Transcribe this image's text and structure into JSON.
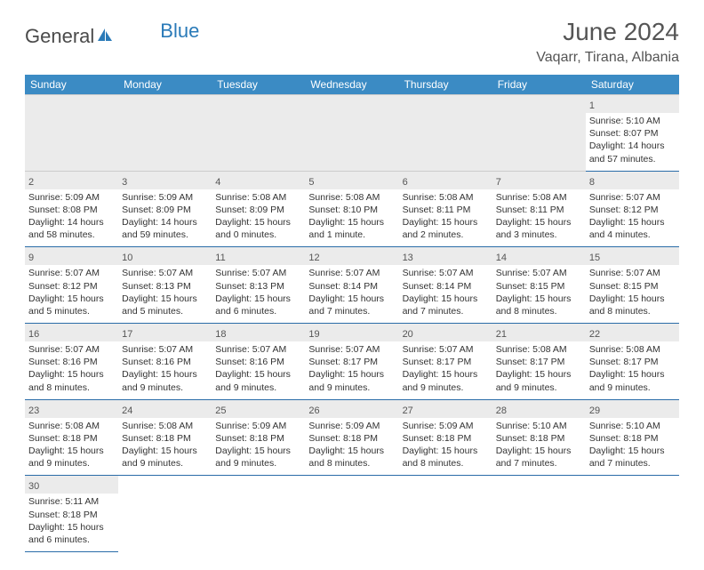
{
  "logo": {
    "part1": "General",
    "part2": "Blue"
  },
  "title": "June 2024",
  "location": "Vaqarr, Tirana, Albania",
  "colors": {
    "header_bg": "#3b8bc4",
    "header_text": "#ffffff",
    "row_border": "#2a6ca8",
    "alt_bg": "#ebebeb",
    "text": "#333333",
    "title_text": "#555555",
    "logo_gray": "#4a4a4a",
    "logo_blue": "#2a7ab8"
  },
  "weekdays": [
    "Sunday",
    "Monday",
    "Tuesday",
    "Wednesday",
    "Thursday",
    "Friday",
    "Saturday"
  ],
  "weeks": [
    [
      null,
      null,
      null,
      null,
      null,
      null,
      {
        "n": "1",
        "sr": "Sunrise: 5:10 AM",
        "ss": "Sunset: 8:07 PM",
        "d1": "Daylight: 14 hours",
        "d2": "and 57 minutes."
      }
    ],
    [
      {
        "n": "2",
        "sr": "Sunrise: 5:09 AM",
        "ss": "Sunset: 8:08 PM",
        "d1": "Daylight: 14 hours",
        "d2": "and 58 minutes."
      },
      {
        "n": "3",
        "sr": "Sunrise: 5:09 AM",
        "ss": "Sunset: 8:09 PM",
        "d1": "Daylight: 14 hours",
        "d2": "and 59 minutes."
      },
      {
        "n": "4",
        "sr": "Sunrise: 5:08 AM",
        "ss": "Sunset: 8:09 PM",
        "d1": "Daylight: 15 hours",
        "d2": "and 0 minutes."
      },
      {
        "n": "5",
        "sr": "Sunrise: 5:08 AM",
        "ss": "Sunset: 8:10 PM",
        "d1": "Daylight: 15 hours",
        "d2": "and 1 minute."
      },
      {
        "n": "6",
        "sr": "Sunrise: 5:08 AM",
        "ss": "Sunset: 8:11 PM",
        "d1": "Daylight: 15 hours",
        "d2": "and 2 minutes."
      },
      {
        "n": "7",
        "sr": "Sunrise: 5:08 AM",
        "ss": "Sunset: 8:11 PM",
        "d1": "Daylight: 15 hours",
        "d2": "and 3 minutes."
      },
      {
        "n": "8",
        "sr": "Sunrise: 5:07 AM",
        "ss": "Sunset: 8:12 PM",
        "d1": "Daylight: 15 hours",
        "d2": "and 4 minutes."
      }
    ],
    [
      {
        "n": "9",
        "sr": "Sunrise: 5:07 AM",
        "ss": "Sunset: 8:12 PM",
        "d1": "Daylight: 15 hours",
        "d2": "and 5 minutes."
      },
      {
        "n": "10",
        "sr": "Sunrise: 5:07 AM",
        "ss": "Sunset: 8:13 PM",
        "d1": "Daylight: 15 hours",
        "d2": "and 5 minutes."
      },
      {
        "n": "11",
        "sr": "Sunrise: 5:07 AM",
        "ss": "Sunset: 8:13 PM",
        "d1": "Daylight: 15 hours",
        "d2": "and 6 minutes."
      },
      {
        "n": "12",
        "sr": "Sunrise: 5:07 AM",
        "ss": "Sunset: 8:14 PM",
        "d1": "Daylight: 15 hours",
        "d2": "and 7 minutes."
      },
      {
        "n": "13",
        "sr": "Sunrise: 5:07 AM",
        "ss": "Sunset: 8:14 PM",
        "d1": "Daylight: 15 hours",
        "d2": "and 7 minutes."
      },
      {
        "n": "14",
        "sr": "Sunrise: 5:07 AM",
        "ss": "Sunset: 8:15 PM",
        "d1": "Daylight: 15 hours",
        "d2": "and 8 minutes."
      },
      {
        "n": "15",
        "sr": "Sunrise: 5:07 AM",
        "ss": "Sunset: 8:15 PM",
        "d1": "Daylight: 15 hours",
        "d2": "and 8 minutes."
      }
    ],
    [
      {
        "n": "16",
        "sr": "Sunrise: 5:07 AM",
        "ss": "Sunset: 8:16 PM",
        "d1": "Daylight: 15 hours",
        "d2": "and 8 minutes."
      },
      {
        "n": "17",
        "sr": "Sunrise: 5:07 AM",
        "ss": "Sunset: 8:16 PM",
        "d1": "Daylight: 15 hours",
        "d2": "and 9 minutes."
      },
      {
        "n": "18",
        "sr": "Sunrise: 5:07 AM",
        "ss": "Sunset: 8:16 PM",
        "d1": "Daylight: 15 hours",
        "d2": "and 9 minutes."
      },
      {
        "n": "19",
        "sr": "Sunrise: 5:07 AM",
        "ss": "Sunset: 8:17 PM",
        "d1": "Daylight: 15 hours",
        "d2": "and 9 minutes."
      },
      {
        "n": "20",
        "sr": "Sunrise: 5:07 AM",
        "ss": "Sunset: 8:17 PM",
        "d1": "Daylight: 15 hours",
        "d2": "and 9 minutes."
      },
      {
        "n": "21",
        "sr": "Sunrise: 5:08 AM",
        "ss": "Sunset: 8:17 PM",
        "d1": "Daylight: 15 hours",
        "d2": "and 9 minutes."
      },
      {
        "n": "22",
        "sr": "Sunrise: 5:08 AM",
        "ss": "Sunset: 8:17 PM",
        "d1": "Daylight: 15 hours",
        "d2": "and 9 minutes."
      }
    ],
    [
      {
        "n": "23",
        "sr": "Sunrise: 5:08 AM",
        "ss": "Sunset: 8:18 PM",
        "d1": "Daylight: 15 hours",
        "d2": "and 9 minutes."
      },
      {
        "n": "24",
        "sr": "Sunrise: 5:08 AM",
        "ss": "Sunset: 8:18 PM",
        "d1": "Daylight: 15 hours",
        "d2": "and 9 minutes."
      },
      {
        "n": "25",
        "sr": "Sunrise: 5:09 AM",
        "ss": "Sunset: 8:18 PM",
        "d1": "Daylight: 15 hours",
        "d2": "and 9 minutes."
      },
      {
        "n": "26",
        "sr": "Sunrise: 5:09 AM",
        "ss": "Sunset: 8:18 PM",
        "d1": "Daylight: 15 hours",
        "d2": "and 8 minutes."
      },
      {
        "n": "27",
        "sr": "Sunrise: 5:09 AM",
        "ss": "Sunset: 8:18 PM",
        "d1": "Daylight: 15 hours",
        "d2": "and 8 minutes."
      },
      {
        "n": "28",
        "sr": "Sunrise: 5:10 AM",
        "ss": "Sunset: 8:18 PM",
        "d1": "Daylight: 15 hours",
        "d2": "and 7 minutes."
      },
      {
        "n": "29",
        "sr": "Sunrise: 5:10 AM",
        "ss": "Sunset: 8:18 PM",
        "d1": "Daylight: 15 hours",
        "d2": "and 7 minutes."
      }
    ],
    [
      {
        "n": "30",
        "sr": "Sunrise: 5:11 AM",
        "ss": "Sunset: 8:18 PM",
        "d1": "Daylight: 15 hours",
        "d2": "and 6 minutes."
      },
      null,
      null,
      null,
      null,
      null,
      null
    ]
  ]
}
